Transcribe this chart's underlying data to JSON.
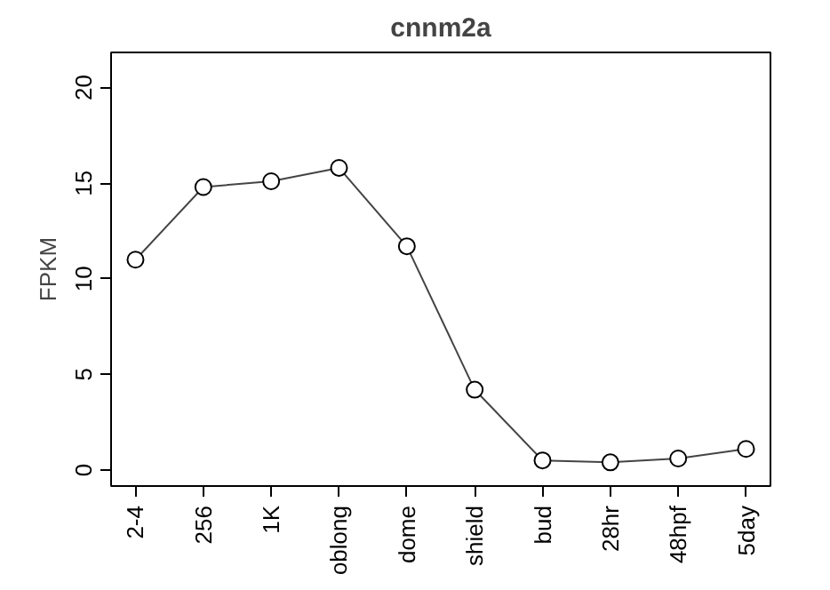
{
  "chart_data": {
    "type": "line",
    "title": "cnnm2a",
    "ylabel": "FPKM",
    "categories": [
      "2-4",
      "256",
      "1K",
      "oblong",
      "dome",
      "shield",
      "bud",
      "28hr",
      "48hpf",
      "5day"
    ],
    "series": [
      {
        "color": "#000000",
        "values": [
          11.0,
          14.8,
          15.1,
          15.8,
          11.7,
          4.2,
          0.5,
          0.4,
          0.6,
          1.1
        ]
      }
    ],
    "ylim": [
      -0.84,
      21.84
    ],
    "yticks": [
      0,
      5,
      10,
      15,
      20
    ],
    "grid": false,
    "marker": "circle",
    "line_style": "solid"
  }
}
